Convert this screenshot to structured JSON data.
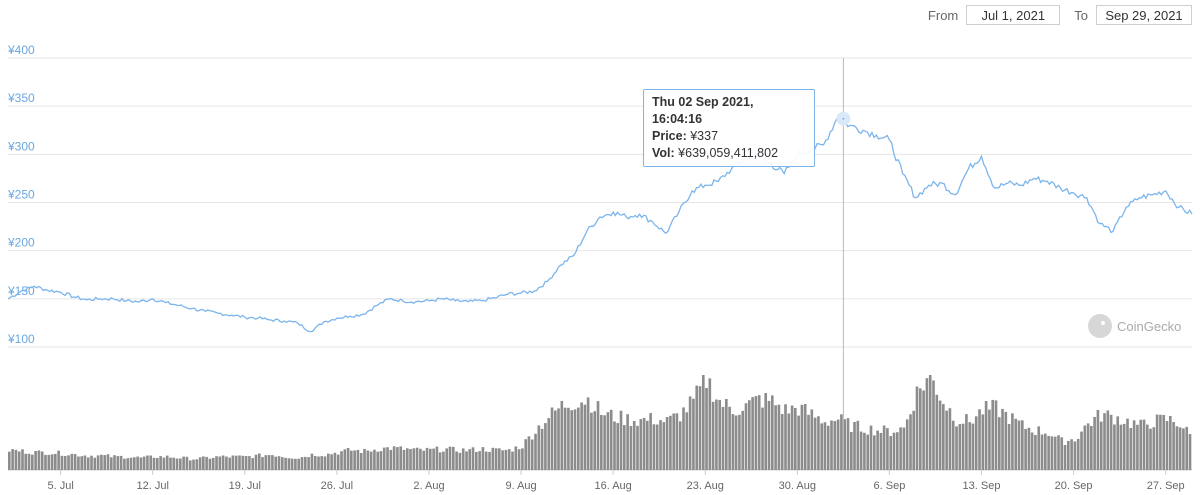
{
  "date_range": {
    "from_label": "From",
    "from_value": "Jul 1, 2021",
    "to_label": "To",
    "to_value": "Sep 29, 2021"
  },
  "tooltip": {
    "date": "Thu 02 Sep 2021, 16:04:16",
    "price_label": "Price:",
    "price_value": "¥337",
    "vol_label": "Vol:",
    "vol_value": "¥639,059,411,802"
  },
  "watermark": {
    "text": "CoinGecko"
  },
  "colors": {
    "line": "#7cb5ec",
    "volume": "#8c8c8c",
    "grid": "#e6e6e6",
    "axis_text": "#6aa7e0"
  },
  "chart_data": [
    {
      "type": "line",
      "title": "",
      "xlabel": "",
      "ylabel": "",
      "x_range": [
        "2021-07-01",
        "2021-09-29"
      ],
      "ylim": [
        100,
        400
      ],
      "y_ticks": [
        "¥400",
        "¥350",
        "¥300",
        "¥250",
        "¥200",
        "¥150",
        "¥100"
      ],
      "y_tick_values": [
        400,
        350,
        300,
        250,
        200,
        150,
        100
      ],
      "x_ticks": [
        "5. Jul",
        "12. Jul",
        "19. Jul",
        "26. Jul",
        "2. Aug",
        "9. Aug",
        "16. Aug",
        "23. Aug",
        "30. Aug",
        "6. Sep",
        "13. Sep",
        "20. Sep",
        "27. Sep"
      ],
      "x_tick_dates": [
        "2021-07-05",
        "2021-07-12",
        "2021-07-19",
        "2021-07-26",
        "2021-08-02",
        "2021-08-09",
        "2021-08-16",
        "2021-08-23",
        "2021-08-30",
        "2021-09-06",
        "2021-09-13",
        "2021-09-20",
        "2021-09-27"
      ],
      "grid": true,
      "series": [
        {
          "dates": [
            "2021-07-01",
            "2021-07-02",
            "2021-07-03",
            "2021-07-04",
            "2021-07-05",
            "2021-07-06",
            "2021-07-07",
            "2021-07-08",
            "2021-07-09",
            "2021-07-10",
            "2021-07-11",
            "2021-07-12",
            "2021-07-13",
            "2021-07-14",
            "2021-07-15",
            "2021-07-16",
            "2021-07-17",
            "2021-07-18",
            "2021-07-19",
            "2021-07-20",
            "2021-07-21",
            "2021-07-22",
            "2021-07-23",
            "2021-07-24",
            "2021-07-25",
            "2021-07-26",
            "2021-07-27",
            "2021-07-28",
            "2021-07-29",
            "2021-07-30",
            "2021-07-31",
            "2021-08-01",
            "2021-08-02",
            "2021-08-03",
            "2021-08-04",
            "2021-08-05",
            "2021-08-06",
            "2021-08-07",
            "2021-08-08",
            "2021-08-09",
            "2021-08-10",
            "2021-08-11",
            "2021-08-12",
            "2021-08-13",
            "2021-08-14",
            "2021-08-15",
            "2021-08-16",
            "2021-08-17",
            "2021-08-18",
            "2021-08-19",
            "2021-08-20",
            "2021-08-21",
            "2021-08-22",
            "2021-08-23",
            "2021-08-24",
            "2021-08-25",
            "2021-08-26",
            "2021-08-27",
            "2021-08-28",
            "2021-08-29",
            "2021-08-30",
            "2021-08-31",
            "2021-09-01",
            "2021-09-02",
            "2021-09-03",
            "2021-09-04",
            "2021-09-05",
            "2021-09-06",
            "2021-09-07",
            "2021-09-08",
            "2021-09-09",
            "2021-09-10",
            "2021-09-11",
            "2021-09-12",
            "2021-09-13",
            "2021-09-14",
            "2021-09-15",
            "2021-09-16",
            "2021-09-17",
            "2021-09-18",
            "2021-09-19",
            "2021-09-20",
            "2021-09-21",
            "2021-09-22",
            "2021-09-23",
            "2021-09-24",
            "2021-09-25",
            "2021-09-26",
            "2021-09-27",
            "2021-09-28",
            "2021-09-29"
          ],
          "values": [
            150,
            158,
            163,
            159,
            157,
            152,
            149,
            150,
            150,
            148,
            147,
            150,
            146,
            143,
            140,
            137,
            135,
            133,
            131,
            130,
            128,
            127,
            125,
            116,
            126,
            130,
            132,
            134,
            143,
            150,
            148,
            147,
            148,
            150,
            148,
            147,
            148,
            151,
            155,
            156,
            158,
            168,
            185,
            195,
            220,
            235,
            240,
            235,
            238,
            230,
            218,
            240,
            262,
            268,
            272,
            285,
            295,
            300,
            290,
            280,
            300,
            305,
            310,
            337,
            330,
            325,
            320,
            315,
            280,
            255,
            268,
            270,
            258,
            285,
            298,
            265,
            270,
            268,
            275,
            272,
            265,
            260,
            255,
            228,
            220,
            245,
            255,
            258,
            262,
            245,
            238
          ]
        }
      ]
    },
    {
      "type": "bar",
      "title": "",
      "xlabel": "",
      "ylabel": "Vol",
      "note": "volume series, unitless axis (no tick labels shown)",
      "dates_ref": "same as line series",
      "values": [
        0.18,
        0.17,
        0.16,
        0.16,
        0.15,
        0.14,
        0.13,
        0.13,
        0.12,
        0.12,
        0.11,
        0.12,
        0.12,
        0.11,
        0.1,
        0.11,
        0.12,
        0.12,
        0.12,
        0.13,
        0.14,
        0.12,
        0.11,
        0.14,
        0.14,
        0.16,
        0.18,
        0.17,
        0.19,
        0.2,
        0.19,
        0.18,
        0.18,
        0.19,
        0.18,
        0.18,
        0.19,
        0.18,
        0.18,
        0.22,
        0.36,
        0.48,
        0.58,
        0.62,
        0.64,
        0.52,
        0.48,
        0.46,
        0.45,
        0.46,
        0.44,
        0.5,
        0.62,
        0.82,
        0.62,
        0.54,
        0.58,
        0.64,
        0.62,
        0.54,
        0.56,
        0.5,
        0.44,
        0.46,
        0.4,
        0.38,
        0.36,
        0.35,
        0.38,
        0.7,
        0.86,
        0.62,
        0.46,
        0.44,
        0.54,
        0.56,
        0.48,
        0.4,
        0.36,
        0.34,
        0.26,
        0.28,
        0.42,
        0.5,
        0.48,
        0.44,
        0.4,
        0.44,
        0.46,
        0.42,
        0.28
      ]
    }
  ]
}
